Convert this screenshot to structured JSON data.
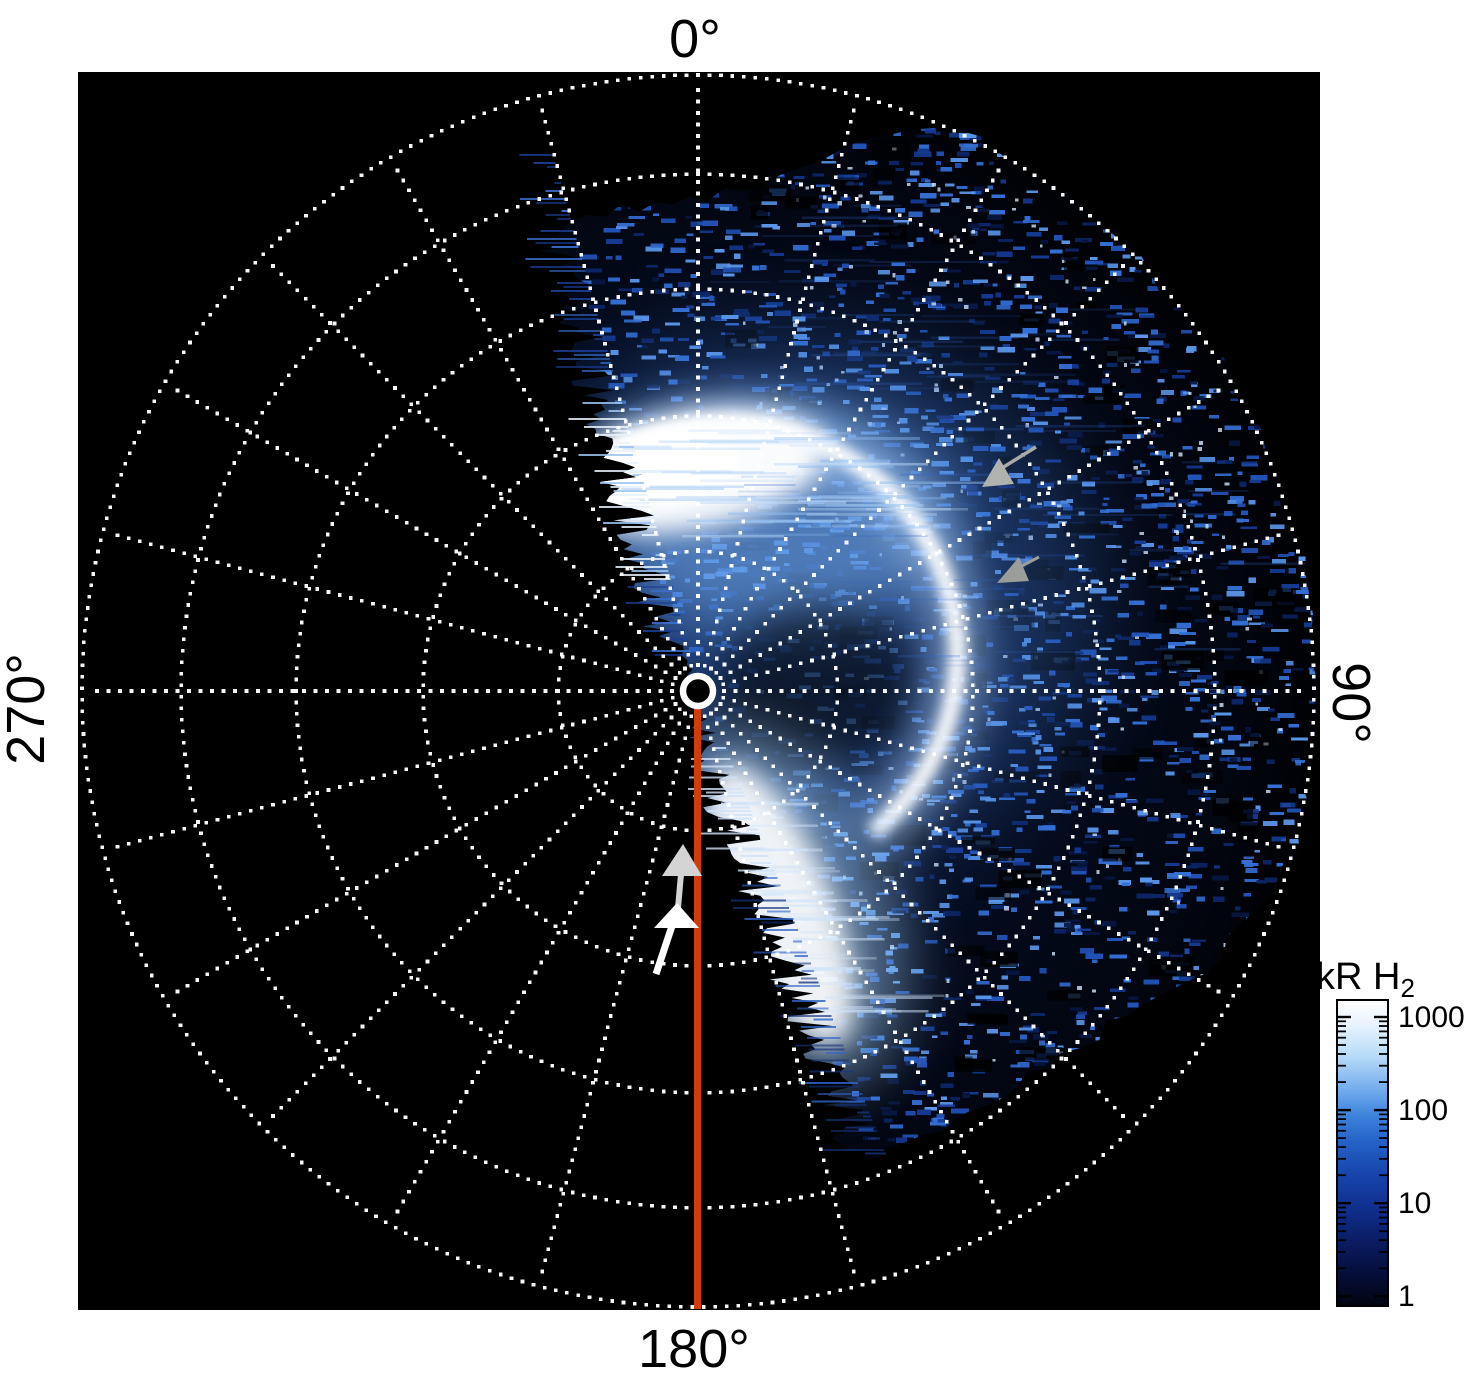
{
  "figure": {
    "description": "Polar projection UV image of planetary H2 auroral emission with dotted latitude-longitude grid, 180-degree meridian marked in red, and gray/white annotation arrows",
    "angle_labels": {
      "top": "0°",
      "right": "90°",
      "bottom": "180°",
      "left": "270°"
    },
    "colorbar": {
      "title_main": "kR H",
      "title_sub": "2",
      "tick_labels": [
        "1000",
        "100",
        "10",
        "1"
      ]
    },
    "colors": {
      "page_background": "#ffffff",
      "plot_background": "#000000",
      "grid_dots": "#ffffff",
      "meridian_180_line": "#d23c07",
      "center_ring": "#ffffff",
      "aurora_core": "#ffffff",
      "aurora_halo": "#9cc8f2",
      "noise_bright": "#5a97ea",
      "noise_dark": "#071741",
      "pointer_arrow_gray": "#a8aaa8",
      "guide_arrow_white": "#ffffff",
      "guide_arrow_gray": "#d4d4d4"
    }
  },
  "chart_data": {
    "type": "heatmap",
    "projection": "polar (orthographic), pole at center",
    "title": "",
    "angular_ticks_deg": [
      0,
      90,
      180,
      270
    ],
    "angular_tick_labels": [
      "0°",
      "90°",
      "180°",
      "270°"
    ],
    "meridian_spacing_deg": 15,
    "colatitude_circles_deg": [
      10,
      20,
      30,
      40,
      50
    ],
    "data_sector_deg": [
      -15,
      158
    ],
    "colorbar": {
      "label": "kR H2",
      "units": "kilorayleigh of H2 emission",
      "scale": "log",
      "ticks": [
        1000,
        100,
        10,
        1
      ],
      "range_approx": [
        1,
        1500
      ]
    },
    "features": [
      "bright auroral oval arc of radius ~20 deg colatitude, open toward 180-270 sector",
      "intense white emission patch near 0 deg longitude at ~15-25 deg colatitude",
      "bright emission swath near 155-165 deg longitude",
      "speckled faint background emission filling sector ~-15 to ~158 deg",
      "no data (black) in remaining sector"
    ],
    "annotations": [
      {
        "name": "meridian-180-reference-line",
        "color": "#d23c07"
      },
      {
        "name": "center-pole-ring",
        "color": "#ffffff"
      },
      {
        "name": "white-guide-arrow",
        "pointing": "up, left of 180 meridian"
      },
      {
        "name": "gray-guide-arrow",
        "pointing": "up, left of 180 meridian, above white arrow"
      },
      {
        "name": "gray-pointer-arrow-upper",
        "pointing": "down-left toward oval"
      },
      {
        "name": "gray-pointer-arrow-lower",
        "pointing": "down-left toward oval"
      }
    ]
  }
}
